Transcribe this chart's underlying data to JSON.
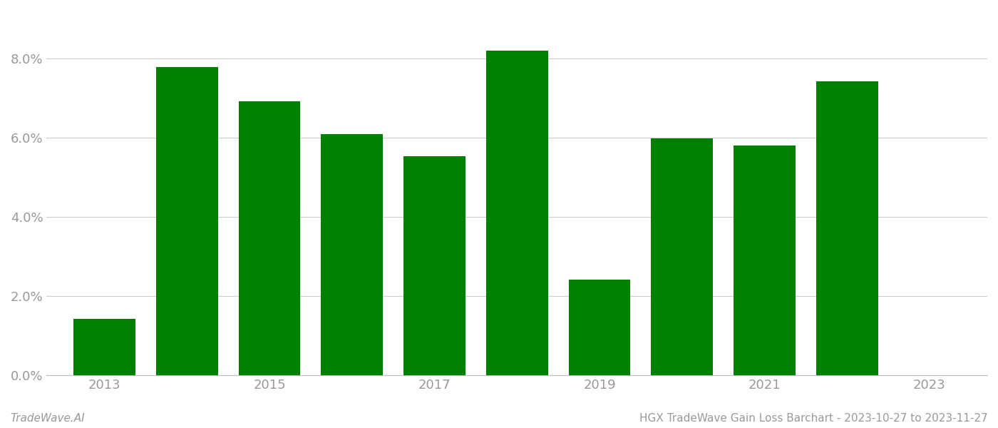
{
  "years": [
    2013,
    2014,
    2015,
    2016,
    2017,
    2018,
    2019,
    2020,
    2021,
    2022
  ],
  "values": [
    0.0142,
    0.0778,
    0.0692,
    0.0608,
    0.0553,
    0.082,
    0.0242,
    0.0597,
    0.058,
    0.0742
  ],
  "bar_color": "#008000",
  "background_color": "#ffffff",
  "footer_left": "TradeWave.AI",
  "footer_right": "HGX TradeWave Gain Loss Barchart - 2023-10-27 to 2023-11-27",
  "ylim": [
    0,
    0.092
  ],
  "ytick_vals": [
    0.0,
    0.02,
    0.04,
    0.06,
    0.08
  ],
  "xtick_positions": [
    2013,
    2015,
    2017,
    2019,
    2021,
    2023
  ],
  "xtick_labels": [
    "2013",
    "2015",
    "2017",
    "2019",
    "2021",
    "2023"
  ],
  "xlim": [
    2012.3,
    2023.7
  ],
  "grid_color": "#cccccc",
  "footer_fontsize": 11,
  "tick_label_color": "#999999",
  "bar_width": 0.75
}
